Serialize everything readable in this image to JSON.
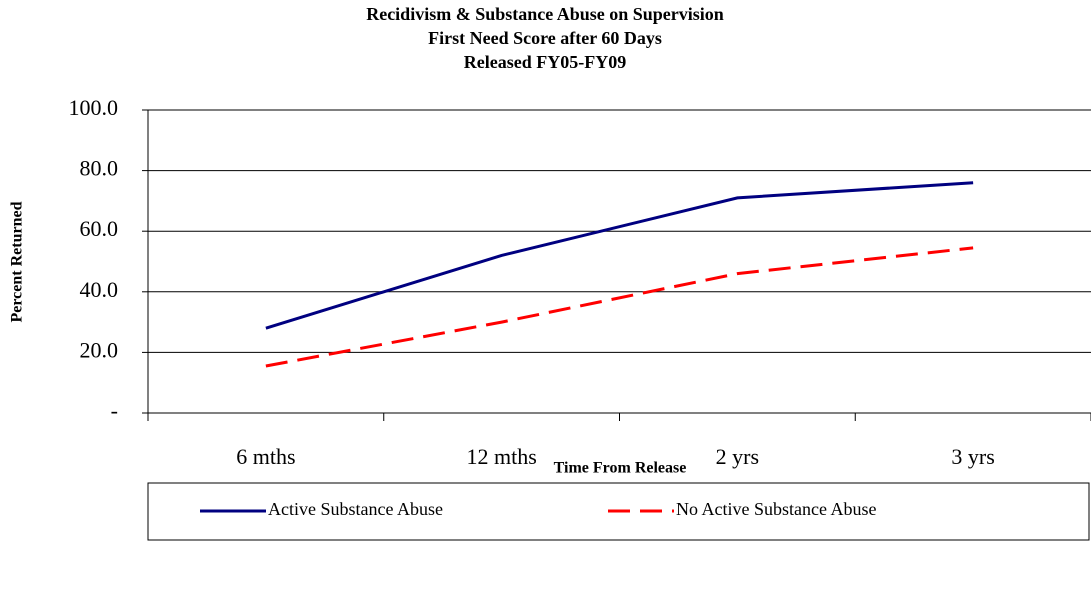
{
  "chart_data": {
    "type": "line",
    "title": [
      "Recidivism & Substance Abuse on Supervision",
      "First Need Score after 60 Days",
      "Released FY05-FY09"
    ],
    "x_label": "Time From Release",
    "y_label": "Percent Returned",
    "categories": [
      "6 mths",
      "12 mths",
      "2 yrs",
      "3 yrs"
    ],
    "series": [
      {
        "name": "Active Substance Abuse",
        "color": "#000080",
        "dash": "solid",
        "values": [
          28,
          52,
          71,
          76
        ]
      },
      {
        "name": "No Active Substance Abuse",
        "color": "#ff0000",
        "dash": "dashed",
        "values": [
          15.5,
          30,
          46,
          54.5
        ]
      }
    ],
    "ylim": [
      0,
      100
    ],
    "yticks": [
      {
        "value": 0,
        "label": "-"
      },
      {
        "value": 20,
        "label": "20.0"
      },
      {
        "value": 40,
        "label": "40.0"
      },
      {
        "value": 60,
        "label": "60.0"
      },
      {
        "value": 80,
        "label": "80.0"
      },
      {
        "value": 100,
        "label": "100.0"
      }
    ],
    "grid": true,
    "legend": "bottom"
  }
}
